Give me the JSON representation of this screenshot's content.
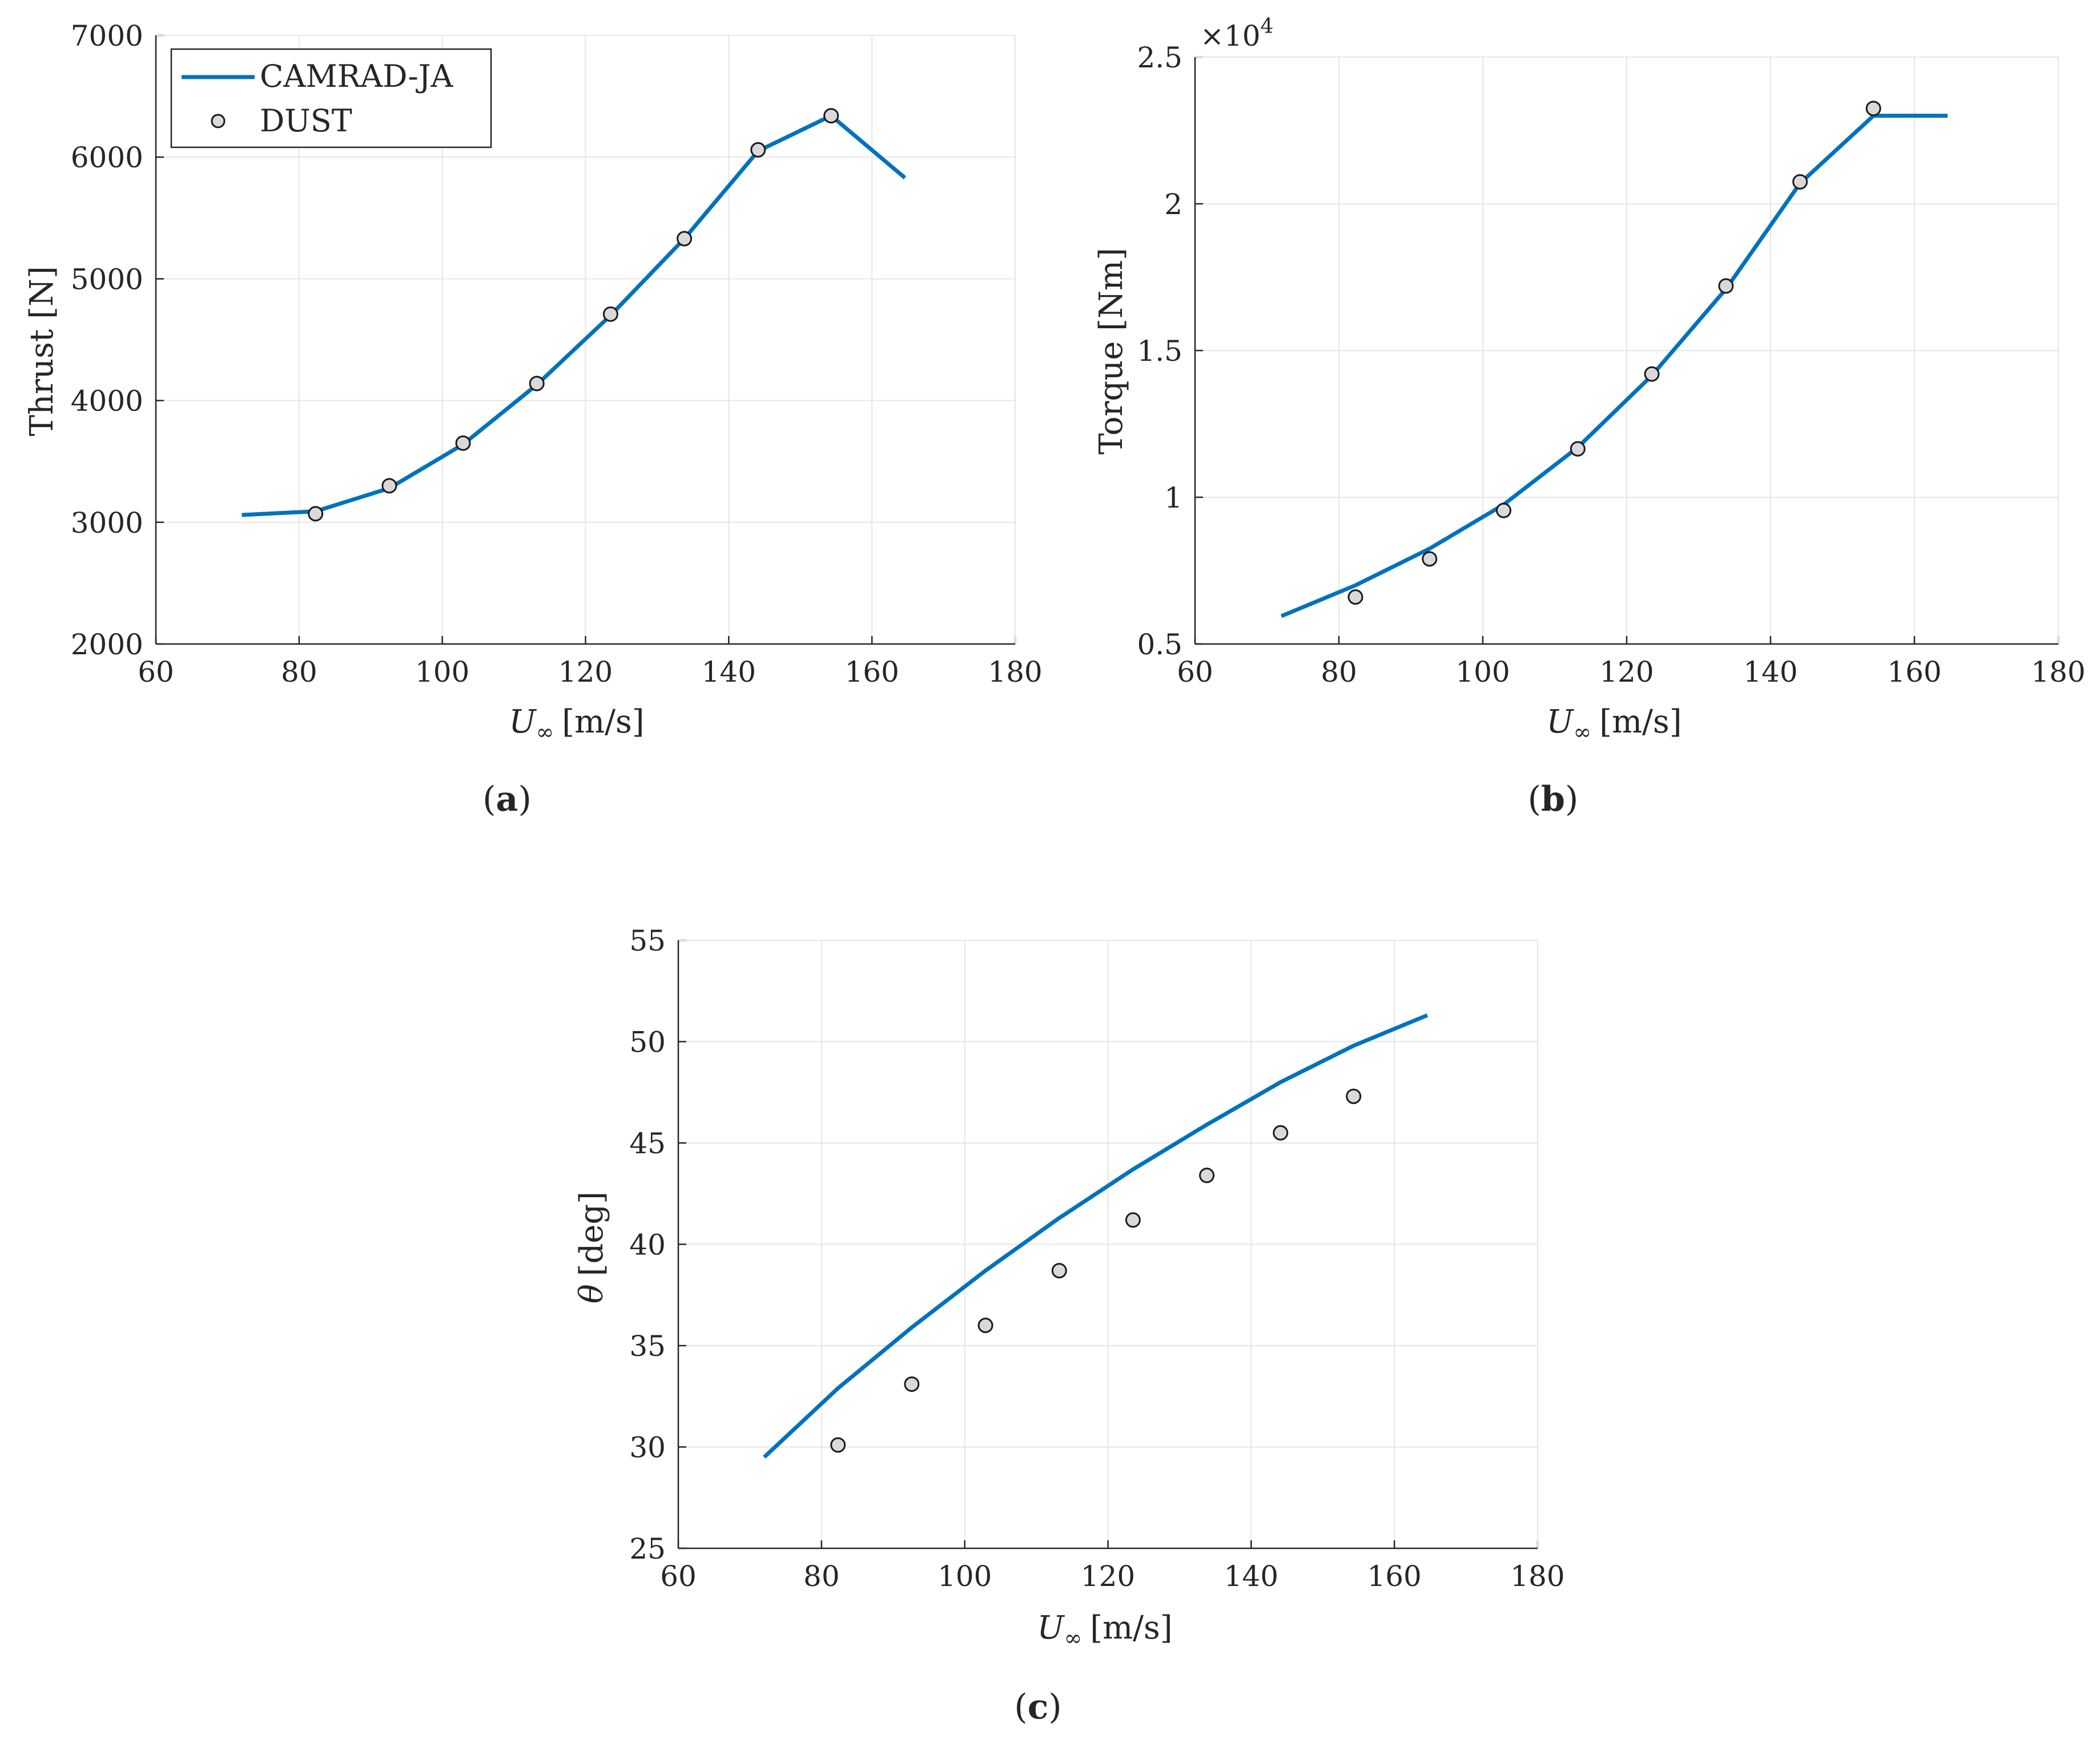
{
  "colors": {
    "line": "#0072BD",
    "marker_fill": "#d9d9d9",
    "marker_edge": "#1a1a1a",
    "grid": "#e6e6e6",
    "axis": "#262626"
  },
  "legend": {
    "placement": "top-left of panel (a)",
    "line_entry": "CAMRAD-JA",
    "marker_entry": "DUST"
  },
  "panels": [
    {
      "id": "a",
      "label_open": "(",
      "label_letter": "a",
      "label_close": ")",
      "ylabel": "Thrust [N]",
      "xlabel_var": "U",
      "xlabel_sub": "∞",
      "xlabel_unit": "[m/s]"
    },
    {
      "id": "b",
      "label_open": "(",
      "label_letter": "b",
      "label_close": ")",
      "ylabel": "Torque [Nm]",
      "xlabel_var": "U",
      "xlabel_sub": "∞",
      "xlabel_unit": "[m/s]",
      "exponent_base": "×10",
      "exponent_power": "4"
    },
    {
      "id": "c",
      "label_open": "(",
      "label_letter": "c",
      "label_close": ")",
      "ylabel_var": "θ",
      "ylabel_unit": "[deg]",
      "xlabel_var": "U",
      "xlabel_sub": "∞",
      "xlabel_unit": "[m/s]"
    }
  ],
  "chart_data": [
    {
      "type": "line",
      "panel": "a",
      "grid": true,
      "xlim": [
        60,
        180
      ],
      "ylim": [
        2000,
        7000
      ],
      "xticks": [
        "60",
        "80",
        "100",
        "120",
        "140",
        "160",
        "180"
      ],
      "yticks": [
        "2000",
        "3000",
        "4000",
        "5000",
        "6000",
        "7000"
      ],
      "series": [
        {
          "name": "CAMRAD-JA",
          "style": "line",
          "x": [
            72,
            82.3,
            92.6,
            102.9,
            113.2,
            123.5,
            133.8,
            144.1,
            154.3,
            164.6
          ],
          "y": [
            3060,
            3090,
            3280,
            3640,
            4130,
            4700,
            5330,
            6050,
            6340,
            5830
          ]
        },
        {
          "name": "DUST",
          "style": "marker",
          "x": [
            82.3,
            92.6,
            102.9,
            113.2,
            123.5,
            133.8,
            144.1,
            154.3
          ],
          "y": [
            3070,
            3300,
            3650,
            4140,
            4710,
            5330,
            6060,
            6340
          ]
        }
      ]
    },
    {
      "type": "line",
      "panel": "b",
      "grid": true,
      "xlim": [
        60,
        180
      ],
      "ylim": [
        0.5,
        2.5
      ],
      "y_multiplier": "x10^4",
      "xticks": [
        "60",
        "80",
        "100",
        "120",
        "140",
        "160",
        "180"
      ],
      "yticks": [
        "0.5",
        "1",
        "1.5",
        "2",
        "2.5"
      ],
      "series": [
        {
          "name": "CAMRAD-JA",
          "style": "line",
          "x": [
            72,
            82.3,
            92.6,
            102.9,
            113.2,
            123.5,
            133.8,
            144.1,
            154.3,
            164.6
          ],
          "y": [
            0.595,
            0.7,
            0.825,
            0.975,
            1.17,
            1.415,
            1.71,
            2.07,
            2.3,
            2.3
          ]
        },
        {
          "name": "DUST",
          "style": "marker",
          "x": [
            82.3,
            92.6,
            102.9,
            113.2,
            123.5,
            133.8,
            144.1,
            154.3
          ],
          "y": [
            0.66,
            0.79,
            0.955,
            1.165,
            1.42,
            1.72,
            2.075,
            2.325
          ]
        }
      ]
    },
    {
      "type": "line",
      "panel": "c",
      "grid": true,
      "xlim": [
        60,
        180
      ],
      "ylim": [
        25,
        55
      ],
      "xticks": [
        "60",
        "80",
        "100",
        "120",
        "140",
        "160",
        "180"
      ],
      "yticks": [
        "25",
        "30",
        "35",
        "40",
        "45",
        "50",
        "55"
      ],
      "series": [
        {
          "name": "CAMRAD-JA",
          "style": "line",
          "x": [
            72,
            82.3,
            92.6,
            102.9,
            113.2,
            123.5,
            133.8,
            144.1,
            154.3,
            164.6
          ],
          "y": [
            29.5,
            32.9,
            35.9,
            38.7,
            41.3,
            43.7,
            45.9,
            48.0,
            49.8,
            51.3
          ]
        },
        {
          "name": "DUST",
          "style": "marker",
          "x": [
            82.3,
            92.6,
            102.9,
            113.2,
            123.5,
            133.8,
            144.1,
            154.3
          ],
          "y": [
            30.1,
            33.1,
            36.0,
            38.7,
            41.2,
            43.4,
            45.5,
            47.3
          ]
        }
      ]
    }
  ]
}
